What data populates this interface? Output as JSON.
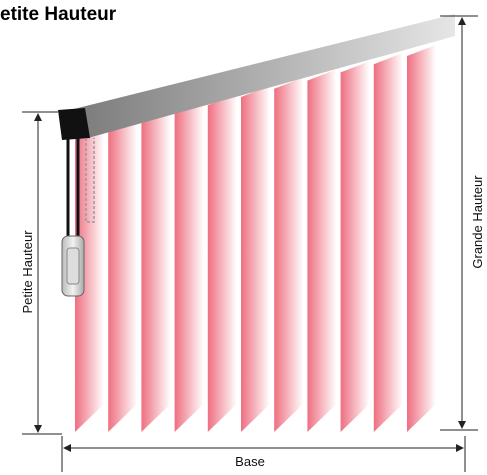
{
  "header": {
    "title": "etite Hauteur"
  },
  "labels": {
    "left_height": "Petite Hauteur",
    "right_height": "Grande Hauteur",
    "base": "Base"
  }
}
